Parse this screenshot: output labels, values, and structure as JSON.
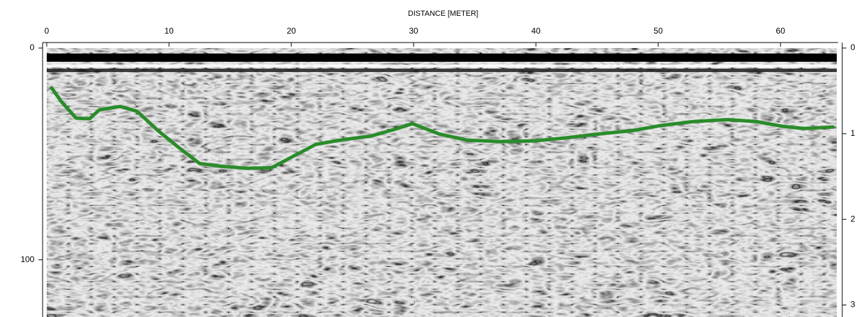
{
  "chart_data": {
    "type": "line",
    "title": "DISTANCE [METER]",
    "xlim": [
      0,
      64.6
    ],
    "xticks": [
      0,
      10,
      20,
      30,
      40,
      50,
      60
    ],
    "ylim": [
      0,
      127
    ],
    "yticks": [
      0,
      100
    ],
    "y2lim": [
      0,
      3.14
    ],
    "y2ticks": [
      0,
      1,
      2,
      3
    ],
    "x": [
      0.4,
      1.2,
      2.4,
      3.5,
      4.3,
      6.0,
      7.4,
      9.1,
      10.8,
      12.5,
      14.2,
      16.4,
      18.4,
      20.1,
      22.0,
      24.3,
      26.5,
      28.5,
      29.9,
      32.1,
      34.4,
      37.2,
      40.0,
      42.8,
      45.6,
      47.9,
      50.1,
      52.9,
      55.7,
      58.0,
      60.2,
      61.9,
      64.3
    ],
    "series": [
      {
        "color": "#2a8c2a",
        "values": [
          18.8,
          25.3,
          33.1,
          33.4,
          29.2,
          27.6,
          29.9,
          39.0,
          47.0,
          54.5,
          55.8,
          56.8,
          56.5,
          51.3,
          45.5,
          43.2,
          41.6,
          38.3,
          35.7,
          40.6,
          43.5,
          44.2,
          43.8,
          42.2,
          40.3,
          39.0,
          36.7,
          34.7,
          33.8,
          34.7,
          37.0,
          38.0,
          37.3
        ]
      }
    ]
  }
}
